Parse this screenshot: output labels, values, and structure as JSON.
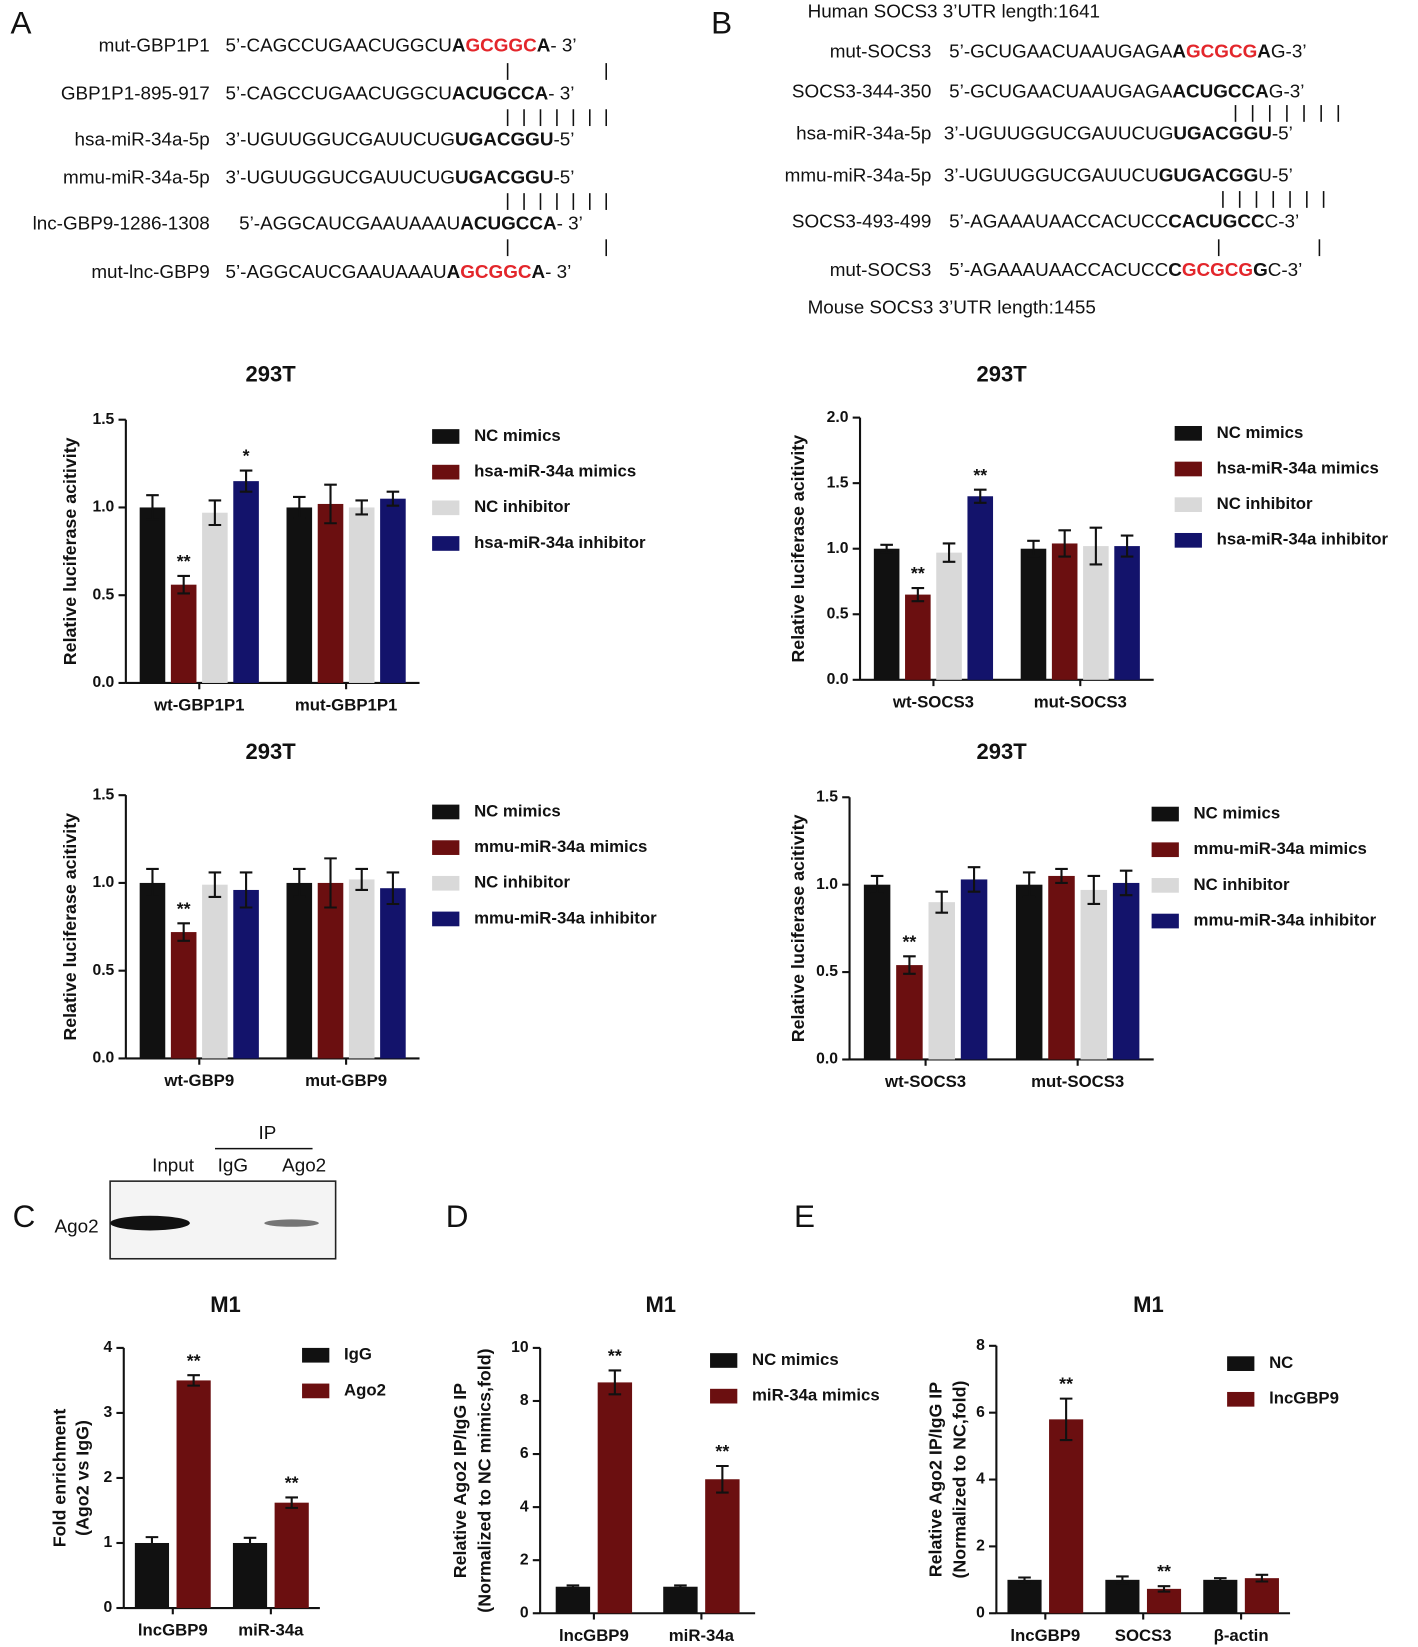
{
  "panels": [
    "A",
    "B",
    "C",
    "D",
    "E"
  ],
  "sequences_a": {
    "highlight_color": "#e3262b",
    "lines": [
      {
        "label": "mut-GBP1P1",
        "parts": [
          "5’-CAGCCUGAACUGGCU",
          "A",
          "GCGGC",
          "A",
          "- 3’"
        ]
      },
      {
        "label": "GBP1P1-895-917",
        "parts": [
          "5’-CAGCCUGAACUGGCU",
          "ACUGCCA",
          "- 3’"
        ]
      },
      {
        "label": "hsa-miR-34a-5p",
        "parts": [
          "3’-UGUUGGUCGAUUCUG",
          "UGACGGU",
          "-5’"
        ]
      },
      {
        "label": "mmu-miR-34a-5p",
        "parts": [
          "3’-UGUUGGUCGAUUCUG",
          "UGACGGU",
          "-5’"
        ]
      },
      {
        "label": "lnc-GBP9-1286-1308",
        "parts": [
          "5’-AGGCAUCGAAUAAAU",
          "ACUGCCA",
          "- 3’"
        ]
      },
      {
        "label": "mut-lnc-GBP9",
        "parts": [
          "5’-AGGCAUCGAAUAAAU",
          "A",
          "GCGGC",
          "A",
          "- 3’"
        ]
      }
    ]
  },
  "sequences_b": {
    "highlight_color": "#e3262b",
    "header": "Human SOCS3 3’UTR length:1641",
    "footer": "Mouse SOCS3 3’UTR length:1455",
    "lines": [
      {
        "label": "mut-SOCS3",
        "parts": [
          "5’-GCUGAACUAAUGAGA",
          "A",
          "GCGCG",
          "A",
          "G-3’"
        ]
      },
      {
        "label": "SOCS3-344-350",
        "parts": [
          "5’-GCUGAACUAAUGAGA",
          "ACUGCCA",
          "G-3’"
        ]
      },
      {
        "label": "hsa-miR-34a-5p",
        "parts": [
          "3’-UGUUGGUCGAUUCUG",
          "UGACGGU",
          "-5’"
        ]
      },
      {
        "label": "mmu-miR-34a-5p",
        "parts": [
          "3’-UGUUGGUCGAUUCU",
          "GUGACGG",
          "U-5’"
        ]
      },
      {
        "label": "SOCS3-493-499",
        "parts": [
          "5’-AGAAAUAACCACUCC",
          "CACUGCC",
          "C-3’"
        ]
      },
      {
        "label": "mut-SOCS3",
        "parts": [
          "5’-AGAAAUAACCACUCC",
          "C",
          "GCGCG",
          "G",
          "C-3’"
        ]
      }
    ]
  },
  "blot": {
    "ip": "IP",
    "lanes": [
      "Input",
      "IgG",
      "Ago2"
    ],
    "row": "Ago2"
  },
  "chart_data": [
    {
      "type": "bar",
      "title": "293T",
      "y_label": "Relative luciferase acitivity",
      "categories": [
        "wt-GBP1P1",
        "mut-GBP1P1"
      ],
      "series": [
        {
          "name": "NC mimics",
          "color": "#111111",
          "values": [
            1.0,
            1.0
          ],
          "errors": [
            0.07,
            0.06
          ],
          "significance": [
            null,
            null
          ]
        },
        {
          "name": "hsa-miR-34a mimics",
          "color": "#6b0f10",
          "values": [
            0.56,
            1.02
          ],
          "errors": [
            0.05,
            0.11
          ],
          "significance": [
            "**",
            null
          ]
        },
        {
          "name": "NC inhibitor",
          "color": "#d9d9d9",
          "values": [
            0.97,
            1.0
          ],
          "errors": [
            0.07,
            0.04
          ],
          "significance": [
            null,
            null
          ]
        },
        {
          "name": "hsa-miR-34a inhibitor",
          "color": "#13136b",
          "values": [
            1.15,
            1.05
          ],
          "errors": [
            0.06,
            0.04
          ],
          "significance": [
            "*",
            null
          ]
        }
      ],
      "ylim": [
        0,
        1.5
      ],
      "yticks": [
        {
          "value": 0,
          "label": "0.0"
        },
        {
          "value": 0.5,
          "label": "0.5"
        },
        {
          "value": 1,
          "label": "1.0"
        },
        {
          "value": 1.5,
          "label": "1.5"
        }
      ]
    },
    {
      "type": "bar",
      "title": "293T",
      "y_label": "Relative luciferase acitivity",
      "categories": [
        "wt-SOCS3",
        "mut-SOCS3"
      ],
      "series": [
        {
          "name": "NC mimics",
          "color": "#111111",
          "values": [
            1.0,
            1.0
          ],
          "errors": [
            0.03,
            0.06
          ],
          "significance": [
            null,
            null
          ]
        },
        {
          "name": "hsa-miR-34a mimics",
          "color": "#6b0f10",
          "values": [
            0.65,
            1.04
          ],
          "errors": [
            0.05,
            0.1
          ],
          "significance": [
            "**",
            null
          ]
        },
        {
          "name": "NC inhibitor",
          "color": "#d9d9d9",
          "values": [
            0.97,
            1.02
          ],
          "errors": [
            0.07,
            0.14
          ],
          "significance": [
            null,
            null
          ]
        },
        {
          "name": "hsa-miR-34a inhibitor",
          "color": "#13136b",
          "values": [
            1.4,
            1.02
          ],
          "errors": [
            0.05,
            0.08
          ],
          "significance": [
            "**",
            null
          ]
        }
      ],
      "ylim": [
        0,
        2.0
      ],
      "yticks": [
        {
          "value": 0,
          "label": "0.0"
        },
        {
          "value": 0.5,
          "label": "0.5"
        },
        {
          "value": 1,
          "label": "1.0"
        },
        {
          "value": 1.5,
          "label": "1.5"
        },
        {
          "value": 2,
          "label": "2.0"
        }
      ]
    },
    {
      "type": "bar",
      "title": "293T",
      "y_label": "Relative luciferase acitivity",
      "categories": [
        "wt-GBP9",
        "mut-GBP9"
      ],
      "series": [
        {
          "name": "NC mimics",
          "color": "#111111",
          "values": [
            1.0,
            1.0
          ],
          "errors": [
            0.08,
            0.08
          ],
          "significance": [
            null,
            null
          ]
        },
        {
          "name": "mmu-miR-34a mimics",
          "color": "#6b0f10",
          "values": [
            0.72,
            1.0
          ],
          "errors": [
            0.05,
            0.14
          ],
          "significance": [
            "**",
            null
          ]
        },
        {
          "name": "NC inhibitor",
          "color": "#d9d9d9",
          "values": [
            0.99,
            1.02
          ],
          "errors": [
            0.07,
            0.06
          ],
          "significance": [
            null,
            null
          ]
        },
        {
          "name": "mmu-miR-34a inhibitor",
          "color": "#13136b",
          "values": [
            0.96,
            0.97
          ],
          "errors": [
            0.1,
            0.09
          ],
          "significance": [
            null,
            null
          ]
        }
      ],
      "ylim": [
        0,
        1.5
      ],
      "yticks": [
        {
          "value": 0,
          "label": "0.0"
        },
        {
          "value": 0.5,
          "label": "0.5"
        },
        {
          "value": 1,
          "label": "1.0"
        },
        {
          "value": 1.5,
          "label": "1.5"
        }
      ]
    },
    {
      "type": "bar",
      "title": "293T",
      "y_label": "Relative luciferase acitivity",
      "categories": [
        "wt-SOCS3",
        "mut-SOCS3"
      ],
      "series": [
        {
          "name": "NC mimics",
          "color": "#111111",
          "values": [
            1.0,
            1.0
          ],
          "errors": [
            0.05,
            0.07
          ],
          "significance": [
            null,
            null
          ]
        },
        {
          "name": "mmu-miR-34a mimics",
          "color": "#6b0f10",
          "values": [
            0.54,
            1.05
          ],
          "errors": [
            0.05,
            0.04
          ],
          "significance": [
            "**",
            null
          ]
        },
        {
          "name": "NC inhibitor",
          "color": "#d9d9d9",
          "values": [
            0.9,
            0.97
          ],
          "errors": [
            0.06,
            0.08
          ],
          "significance": [
            null,
            null
          ]
        },
        {
          "name": "mmu-miR-34a inhibitor",
          "color": "#13136b",
          "values": [
            1.03,
            1.01
          ],
          "errors": [
            0.07,
            0.07
          ],
          "significance": [
            null,
            null
          ]
        }
      ],
      "ylim": [
        0,
        1.5
      ],
      "yticks": [
        {
          "value": 0,
          "label": "0.0"
        },
        {
          "value": 0.5,
          "label": "0.5"
        },
        {
          "value": 1,
          "label": "1.0"
        },
        {
          "value": 1.5,
          "label": "1.5"
        }
      ]
    },
    {
      "type": "bar",
      "title": "M1",
      "y_label": [
        "Fold enrichment",
        "(Ago2 vs IgG)"
      ],
      "categories": [
        "lncGBP9",
        "miR-34a"
      ],
      "series": [
        {
          "name": "IgG",
          "color": "#111111",
          "values": [
            1.0,
            1.0
          ],
          "errors": [
            0.09,
            0.08
          ],
          "significance": [
            null,
            null
          ]
        },
        {
          "name": "Ago2",
          "color": "#6b0f10",
          "values": [
            3.5,
            1.62
          ],
          "errors": [
            0.08,
            0.08
          ],
          "significance": [
            "**",
            "**"
          ]
        }
      ],
      "ylim": [
        0,
        4
      ],
      "yticks": [
        0,
        1,
        2,
        3,
        4
      ]
    },
    {
      "type": "bar",
      "title": "M1",
      "y_label": [
        "Relative Ago2 IP/IgG IP",
        "(Normalized to NC mimics,fold)"
      ],
      "categories": [
        "lncGBP9",
        "miR-34a"
      ],
      "series": [
        {
          "name": "NC mimics",
          "color": "#111111",
          "values": [
            1.0,
            1.0
          ],
          "errors": [
            0.05,
            0.05
          ],
          "significance": [
            null,
            null
          ]
        },
        {
          "name": "miR-34a mimics",
          "color": "#6b0f10",
          "values": [
            8.7,
            5.05
          ],
          "errors": [
            0.45,
            0.5
          ],
          "significance": [
            "**",
            "**"
          ]
        }
      ],
      "ylim": [
        0,
        10
      ],
      "yticks": [
        0,
        2,
        4,
        6,
        8,
        10
      ]
    },
    {
      "type": "bar",
      "title": "M1",
      "y_label": [
        "Relative Ago2 IP/IgG IP",
        "(Normalized to NC,fold)"
      ],
      "categories": [
        "lncGBP9",
        "SOCS3",
        "β-actin"
      ],
      "series": [
        {
          "name": "NC",
          "color": "#111111",
          "values": [
            1.0,
            1.0,
            1.0
          ],
          "errors": [
            0.07,
            0.1,
            0.05
          ],
          "significance": [
            null,
            null,
            null
          ]
        },
        {
          "name": "lncGBP9",
          "color": "#6b0f10",
          "values": [
            5.8,
            0.73,
            1.05
          ],
          "errors": [
            0.62,
            0.08,
            0.1
          ],
          "significance": [
            "**",
            "**",
            null
          ]
        }
      ],
      "ylim": [
        0,
        8
      ],
      "yticks": [
        0,
        2,
        4,
        6,
        8
      ]
    }
  ]
}
